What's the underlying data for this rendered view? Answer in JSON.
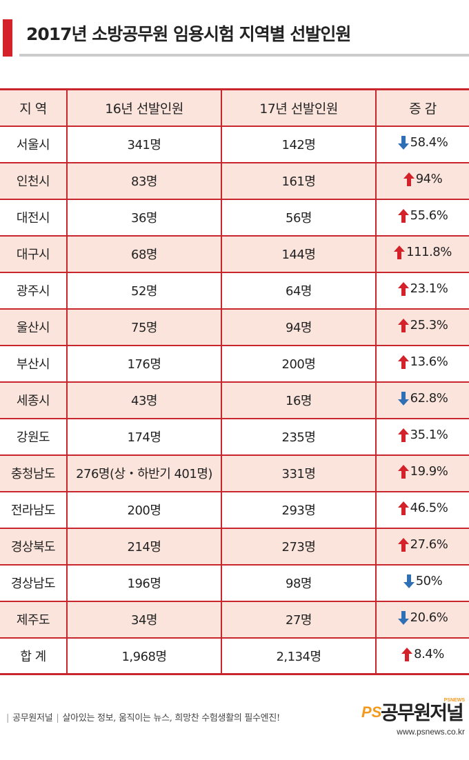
{
  "title": "2017년 소방공무원 임용시험 지역별 선발인원",
  "table": {
    "headers": [
      "지 역",
      "16년 선발인원",
      "17년 선발인원",
      "증 감"
    ],
    "rows": [
      {
        "region": "서울시",
        "y16": "341명",
        "y17": "142명",
        "dir": "down",
        "change": "58.4%"
      },
      {
        "region": "인천시",
        "y16": "83명",
        "y17": "161명",
        "dir": "up",
        "change": "94%"
      },
      {
        "region": "대전시",
        "y16": "36명",
        "y17": "56명",
        "dir": "up",
        "change": "55.6%"
      },
      {
        "region": "대구시",
        "y16": "68명",
        "y17": "144명",
        "dir": "up",
        "change": "111.8%"
      },
      {
        "region": "광주시",
        "y16": "52명",
        "y17": "64명",
        "dir": "up",
        "change": "23.1%"
      },
      {
        "region": "울산시",
        "y16": "75명",
        "y17": "94명",
        "dir": "up",
        "change": "25.3%"
      },
      {
        "region": "부산시",
        "y16": "176명",
        "y17": "200명",
        "dir": "up",
        "change": "13.6%"
      },
      {
        "region": "세종시",
        "y16": "43명",
        "y17": "16명",
        "dir": "down",
        "change": "62.8%"
      },
      {
        "region": "강원도",
        "y16": "174명",
        "y17": "235명",
        "dir": "up",
        "change": "35.1%"
      },
      {
        "region": "충청남도",
        "y16": "276명(상・하반기 401명)",
        "y17": "331명",
        "dir": "up",
        "change": "19.9%"
      },
      {
        "region": "전라남도",
        "y16": "200명",
        "y17": "293명",
        "dir": "up",
        "change": "46.5%"
      },
      {
        "region": "경상북도",
        "y16": "214명",
        "y17": "273명",
        "dir": "up",
        "change": "27.6%"
      },
      {
        "region": "경상남도",
        "y16": "196명",
        "y17": "98명",
        "dir": "down",
        "change": "50%"
      },
      {
        "region": "제주도",
        "y16": "34명",
        "y17": "27명",
        "dir": "down",
        "change": "20.6%"
      },
      {
        "region": "합 계",
        "y16": "1,968명",
        "y17": "2,134명",
        "dir": "up",
        "change": "8.4%"
      }
    ]
  },
  "colors": {
    "up_arrow": "#d3222a",
    "down_arrow": "#2f6fb5",
    "accent": "#c8252c",
    "row_tint": "#fbe4dc"
  },
  "footer": {
    "brand": "공무원저널",
    "slogan": "살아있는 정보, 움직이는 뉴스, 희망찬 수험생활의 필수엔진!",
    "logo_prefix": "PS",
    "logo_text": "공무원저널",
    "logo_tag": "PSNEWS",
    "url": "www.psnews.co.kr"
  }
}
